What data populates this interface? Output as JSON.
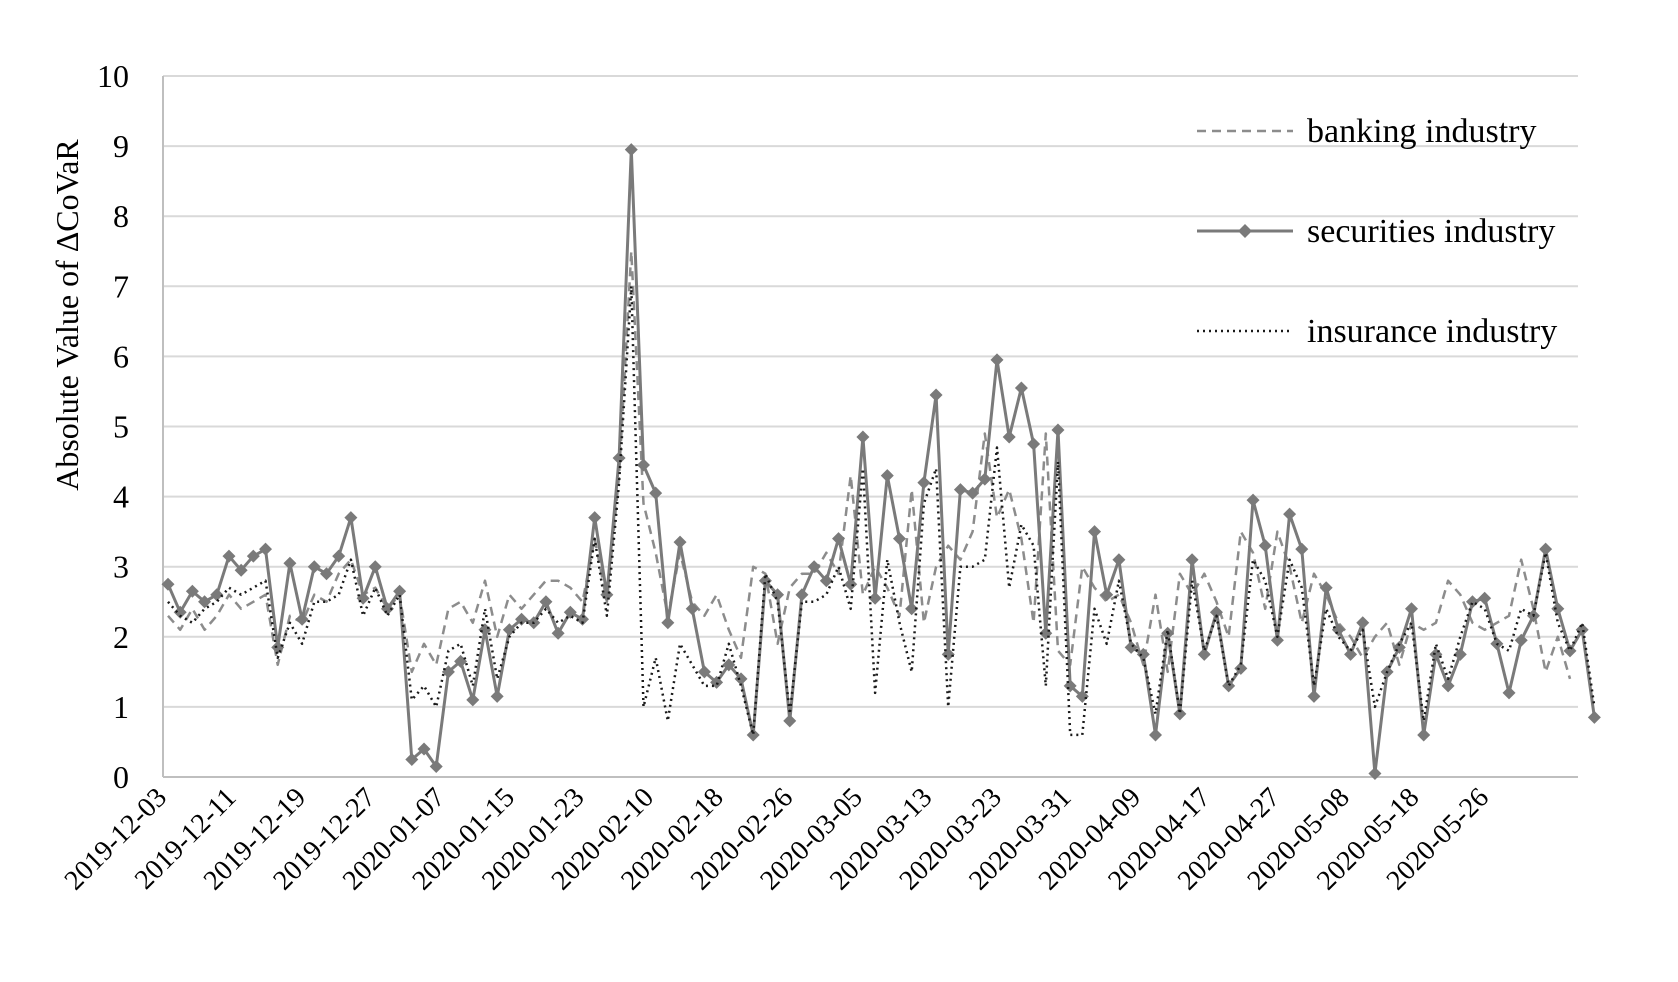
{
  "chart_data": {
    "type": "line",
    "ylabel": "Absolute Value of ΔCoVaR",
    "ylim": [
      0,
      10
    ],
    "yticks": [
      "0",
      "1",
      "2",
      "3",
      "4",
      "5",
      "6",
      "7",
      "8",
      "9",
      "10"
    ],
    "xtick_labels": [
      "2019-12-03",
      "2019-12-11",
      "2019-12-19",
      "2019-12-27",
      "2020-01-07",
      "2020-01-15",
      "2020-01-23",
      "2020-02-10",
      "2020-02-18",
      "2020-02-26",
      "2020-03-05",
      "2020-03-13",
      "2020-03-23",
      "2020-03-31",
      "2020-04-09",
      "2020-04-17",
      "2020-04-27",
      "2020-05-08",
      "2020-05-18",
      "2020-05-26"
    ],
    "legend_position": "top-right",
    "grid": true,
    "series": [
      {
        "name": "banking industry",
        "style": "dashed",
        "color": "#8c8c8c",
        "values": [
          2.3,
          2.1,
          2.4,
          2.1,
          2.3,
          2.6,
          2.4,
          2.5,
          2.6,
          1.6,
          2.3,
          2.2,
          2.6,
          2.5,
          2.9,
          3.1,
          2.6,
          2.7,
          2.4,
          2.6,
          1.5,
          1.9,
          1.6,
          2.4,
          2.5,
          2.2,
          2.8,
          2.0,
          2.6,
          2.4,
          2.6,
          2.8,
          2.8,
          2.7,
          2.5,
          3.4,
          2.5,
          4.3,
          7.5,
          3.9,
          3.2,
          2.3,
          3.2,
          2.5,
          2.3,
          2.6,
          2.1,
          1.7,
          3.0,
          2.9,
          1.9,
          2.7,
          2.9,
          2.9,
          3.2,
          2.9,
          4.3,
          2.6,
          3.0,
          2.7,
          2.3,
          4.1,
          2.2,
          3.0,
          3.3,
          3.1,
          3.5,
          4.9,
          3.7,
          4.1,
          3.4,
          2.2,
          4.9,
          1.8,
          1.6,
          3.0,
          2.7,
          2.5,
          2.6,
          2.2,
          1.6,
          2.6,
          1.5,
          2.9,
          2.6,
          2.9,
          2.5,
          2.0,
          3.5,
          3.2,
          2.4,
          3.5,
          3.0,
          2.2,
          2.9,
          2.6,
          2.2,
          2.0,
          1.7,
          2.0,
          2.2,
          1.6,
          2.2,
          2.1,
          2.2,
          2.8,
          2.6,
          2.2,
          2.1,
          2.2,
          2.3,
          3.1,
          2.4,
          1.5,
          2.0,
          1.4
        ]
      },
      {
        "name": "securities industry",
        "style": "solid-diamond",
        "color": "#7a7a7a",
        "values": [
          2.75,
          2.35,
          2.65,
          2.5,
          2.6,
          3.15,
          2.95,
          3.15,
          3.25,
          1.85,
          3.05,
          2.25,
          3.0,
          2.9,
          3.15,
          3.7,
          2.55,
          3.0,
          2.4,
          2.65,
          0.25,
          0.4,
          0.15,
          1.5,
          1.65,
          1.1,
          2.1,
          1.15,
          2.1,
          2.25,
          2.2,
          2.5,
          2.05,
          2.35,
          2.25,
          3.7,
          2.6,
          4.55,
          8.95,
          4.45,
          4.05,
          2.2,
          3.35,
          2.4,
          1.5,
          1.35,
          1.6,
          1.4,
          0.6,
          2.8,
          2.6,
          0.8,
          2.6,
          3.0,
          2.8,
          3.4,
          2.75,
          4.85,
          2.55,
          4.3,
          3.4,
          2.4,
          4.2,
          5.45,
          1.75,
          4.1,
          4.05,
          4.25,
          5.95,
          4.85,
          5.55,
          4.75,
          2.05,
          4.95,
          1.3,
          1.15,
          3.5,
          2.6,
          3.1,
          1.85,
          1.75,
          0.6,
          2.05,
          0.9,
          3.1,
          1.75,
          2.35,
          1.3,
          1.55,
          3.95,
          3.3,
          1.95,
          3.75,
          3.25,
          1.15,
          2.7,
          2.1,
          1.75,
          2.2,
          0.05,
          1.5,
          1.85,
          2.4,
          0.6,
          1.75,
          1.3,
          1.75,
          2.5,
          2.55,
          1.9,
          1.2,
          1.95,
          2.3,
          3.25,
          2.4,
          1.8,
          2.1,
          0.85
        ]
      },
      {
        "name": "insurance industry",
        "style": "dotted",
        "color": "#1a1a1a",
        "values": [
          2.5,
          2.3,
          2.2,
          2.4,
          2.5,
          2.7,
          2.6,
          2.7,
          2.8,
          1.7,
          2.2,
          1.9,
          2.5,
          2.5,
          2.6,
          3.1,
          2.3,
          2.7,
          2.3,
          2.6,
          1.1,
          1.3,
          1.0,
          1.8,
          1.9,
          1.3,
          2.4,
          1.4,
          2.0,
          2.2,
          2.2,
          2.4,
          2.2,
          2.3,
          2.2,
          3.4,
          2.3,
          4.2,
          7.0,
          1.0,
          1.7,
          0.8,
          1.9,
          1.6,
          1.3,
          1.3,
          1.9,
          1.3,
          0.6,
          2.9,
          2.5,
          0.9,
          2.5,
          2.5,
          2.6,
          3.0,
          2.4,
          4.4,
          1.2,
          3.1,
          2.2,
          1.5,
          3.9,
          4.4,
          1.0,
          3.0,
          3.0,
          3.1,
          4.7,
          2.7,
          3.6,
          3.3,
          1.3,
          4.5,
          0.6,
          0.6,
          2.4,
          1.9,
          2.8,
          1.9,
          1.7,
          0.9,
          2.1,
          0.9,
          2.8,
          1.8,
          2.3,
          1.3,
          1.6,
          3.1,
          2.8,
          2.0,
          3.1,
          2.7,
          1.3,
          2.4,
          2.0,
          1.8,
          2.1,
          1.0,
          1.5,
          1.9,
          2.2,
          0.8,
          1.9,
          1.4,
          2.0,
          2.5,
          2.4,
          1.9,
          1.8,
          2.4,
          2.3,
          3.2,
          2.2,
          1.8,
          2.2,
          1.0
        ]
      }
    ]
  }
}
